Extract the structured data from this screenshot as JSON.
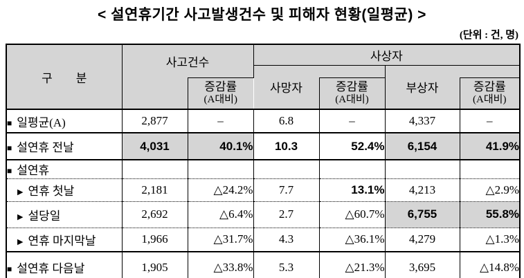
{
  "title": "<  설연휴기간  사고발생건수  및  피해자  현황(일평균)  >",
  "unit_note": "(단위 : 건, 명)",
  "colors": {
    "header_bg": "#d5d5d5",
    "highlight_bg": "#d5d5d5",
    "border": "#000000",
    "text": "#000000"
  },
  "header": {
    "col_group": "구　　분",
    "accidents": "사고건수",
    "casualties": "사상자",
    "deaths": "사망자",
    "injured": "부상자",
    "change_rate": "증감률",
    "change_rate_sub": "(A대비)"
  },
  "rows": [
    {
      "marker": "■",
      "label": "일평균(A)",
      "indent": false,
      "sep": "solid",
      "cells": [
        {
          "text": "2,877",
          "align": "c",
          "bold": false,
          "highlight": false
        },
        {
          "text": "–",
          "align": "c",
          "bold": false,
          "highlight": false
        },
        {
          "text": "6.8",
          "align": "c",
          "bold": false,
          "highlight": false
        },
        {
          "text": "–",
          "align": "c",
          "bold": false,
          "highlight": false
        },
        {
          "text": "4,337",
          "align": "c",
          "bold": false,
          "highlight": false
        },
        {
          "text": "–",
          "align": "c",
          "bold": false,
          "highlight": false
        }
      ]
    },
    {
      "marker": "■",
      "label": "설연휴 전날",
      "indent": false,
      "sep": "solid",
      "cells": [
        {
          "text": "4,031",
          "align": "c",
          "bold": true,
          "highlight": true
        },
        {
          "text": "40.1%",
          "align": "r",
          "bold": true,
          "highlight": true
        },
        {
          "text": "10.3",
          "align": "c",
          "bold": true,
          "highlight": false
        },
        {
          "text": "52.4%",
          "align": "r",
          "bold": true,
          "highlight": false
        },
        {
          "text": "6,154",
          "align": "c",
          "bold": true,
          "highlight": true
        },
        {
          "text": "41.9%",
          "align": "r",
          "bold": true,
          "highlight": true
        }
      ]
    },
    {
      "marker": "■",
      "label": "설연휴",
      "indent": false,
      "sep": "dotted",
      "cells": [
        {
          "text": "",
          "align": "c",
          "bold": false,
          "highlight": false
        },
        {
          "text": "",
          "align": "c",
          "bold": false,
          "highlight": false
        },
        {
          "text": "",
          "align": "c",
          "bold": false,
          "highlight": false
        },
        {
          "text": "",
          "align": "c",
          "bold": false,
          "highlight": false
        },
        {
          "text": "",
          "align": "c",
          "bold": false,
          "highlight": false
        },
        {
          "text": "",
          "align": "c",
          "bold": false,
          "highlight": false
        }
      ]
    },
    {
      "marker": "▶",
      "label": "연휴 첫날",
      "indent": true,
      "sep": "dotted",
      "cells": [
        {
          "text": "2,181",
          "align": "c",
          "bold": false,
          "highlight": false
        },
        {
          "text": "△24.2%",
          "align": "r",
          "bold": false,
          "highlight": false
        },
        {
          "text": "7.7",
          "align": "c",
          "bold": false,
          "highlight": false
        },
        {
          "text": "13.1%",
          "align": "r",
          "bold": true,
          "highlight": false
        },
        {
          "text": "4,213",
          "align": "c",
          "bold": false,
          "highlight": false
        },
        {
          "text": "△2.9%",
          "align": "r",
          "bold": false,
          "highlight": false
        }
      ]
    },
    {
      "marker": "▶",
      "label": "설당일",
      "indent": true,
      "sep": "dotted",
      "cells": [
        {
          "text": "2,692",
          "align": "c",
          "bold": false,
          "highlight": false
        },
        {
          "text": "△6.4%",
          "align": "r",
          "bold": false,
          "highlight": false
        },
        {
          "text": "2.7",
          "align": "c",
          "bold": false,
          "highlight": false
        },
        {
          "text": "△60.7%",
          "align": "r",
          "bold": false,
          "highlight": false
        },
        {
          "text": "6,755",
          "align": "c",
          "bold": true,
          "highlight": true
        },
        {
          "text": "55.8%",
          "align": "r",
          "bold": true,
          "highlight": true
        }
      ]
    },
    {
      "marker": "▶",
      "label": "연휴 마지막날",
      "indent": true,
      "sep": "solid",
      "cells": [
        {
          "text": "1,966",
          "align": "c",
          "bold": false,
          "highlight": false
        },
        {
          "text": "△31.7%",
          "align": "r",
          "bold": false,
          "highlight": false
        },
        {
          "text": "4.3",
          "align": "c",
          "bold": false,
          "highlight": false
        },
        {
          "text": "△36.1%",
          "align": "r",
          "bold": false,
          "highlight": false
        },
        {
          "text": "4,279",
          "align": "c",
          "bold": false,
          "highlight": false
        },
        {
          "text": "△1.3%",
          "align": "r",
          "bold": false,
          "highlight": false
        }
      ]
    },
    {
      "marker": "■",
      "label": "설연휴 다음날",
      "indent": false,
      "sep": "none",
      "cells": [
        {
          "text": "1,905",
          "align": "c",
          "bold": false,
          "highlight": false
        },
        {
          "text": "△33.8%",
          "align": "r",
          "bold": false,
          "highlight": false
        },
        {
          "text": "5.3",
          "align": "c",
          "bold": false,
          "highlight": false
        },
        {
          "text": "△21.3%",
          "align": "r",
          "bold": false,
          "highlight": false
        },
        {
          "text": "3,695",
          "align": "c",
          "bold": false,
          "highlight": false
        },
        {
          "text": "△14.8%",
          "align": "r",
          "bold": false,
          "highlight": false
        }
      ]
    }
  ]
}
